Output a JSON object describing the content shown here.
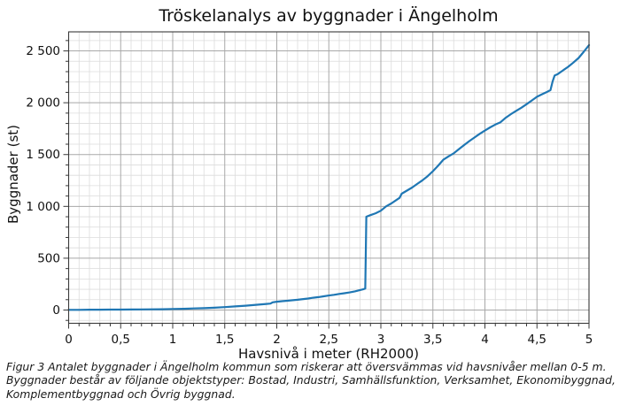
{
  "chart_data": {
    "type": "line",
    "title": "Tröskelanalys av byggnader i Ängelholm",
    "xlabel": "Havsnivå i meter (RH2000)",
    "ylabel": "Byggnader (st)",
    "xlim": [
      0,
      5
    ],
    "ylim": [
      -128,
      2684
    ],
    "grid": "major-and-minor",
    "legend": "none",
    "line_color": "#1f77b4",
    "major_grid_color": "#a8a8a8",
    "minor_grid_color": "#dcdcdc",
    "spine_color": "#3a3a3a",
    "x_minor_step": 0.1,
    "y_minor_step": 100,
    "x_ticks": [
      {
        "v": 0,
        "label": "0"
      },
      {
        "v": 0.5,
        "label": "0,5"
      },
      {
        "v": 1,
        "label": "1"
      },
      {
        "v": 1.5,
        "label": "1,5"
      },
      {
        "v": 2,
        "label": "2"
      },
      {
        "v": 2.5,
        "label": "2,5"
      },
      {
        "v": 3,
        "label": "3"
      },
      {
        "v": 3.5,
        "label": "3,5"
      },
      {
        "v": 4,
        "label": "4"
      },
      {
        "v": 4.5,
        "label": "4,5"
      },
      {
        "v": 5,
        "label": "5"
      }
    ],
    "y_ticks": [
      {
        "v": 0,
        "label": "0"
      },
      {
        "v": 500,
        "label": "500"
      },
      {
        "v": 1000,
        "label": "1 000"
      },
      {
        "v": 1500,
        "label": "1 500"
      },
      {
        "v": 2000,
        "label": "2 000"
      },
      {
        "v": 2500,
        "label": "2 500"
      }
    ],
    "series": [
      {
        "name": "Byggnader",
        "points": [
          [
            0,
            2
          ],
          [
            0.1,
            2
          ],
          [
            0.2,
            3
          ],
          [
            0.3,
            3
          ],
          [
            0.4,
            4
          ],
          [
            0.5,
            4
          ],
          [
            0.6,
            5
          ],
          [
            0.7,
            6
          ],
          [
            0.8,
            7
          ],
          [
            0.9,
            8
          ],
          [
            1.0,
            10
          ],
          [
            1.1,
            12
          ],
          [
            1.2,
            15
          ],
          [
            1.3,
            18
          ],
          [
            1.4,
            22
          ],
          [
            1.5,
            28
          ],
          [
            1.6,
            35
          ],
          [
            1.7,
            42
          ],
          [
            1.75,
            46
          ],
          [
            1.8,
            50
          ],
          [
            1.85,
            55
          ],
          [
            1.9,
            59
          ],
          [
            1.94,
            62
          ],
          [
            1.96,
            74
          ],
          [
            2.0,
            80
          ],
          [
            2.05,
            85
          ],
          [
            2.1,
            90
          ],
          [
            2.2,
            99
          ],
          [
            2.3,
            111
          ],
          [
            2.35,
            119
          ],
          [
            2.4,
            125
          ],
          [
            2.45,
            132
          ],
          [
            2.5,
            140
          ],
          [
            2.55,
            147
          ],
          [
            2.6,
            155
          ],
          [
            2.65,
            162
          ],
          [
            2.7,
            170
          ],
          [
            2.75,
            180
          ],
          [
            2.8,
            193
          ],
          [
            2.83,
            200
          ],
          [
            2.85,
            207
          ],
          [
            2.86,
            900
          ],
          [
            2.9,
            916
          ],
          [
            2.95,
            934
          ],
          [
            3.0,
            958
          ],
          [
            3.05,
            1000
          ],
          [
            3.1,
            1028
          ],
          [
            3.15,
            1062
          ],
          [
            3.18,
            1082
          ],
          [
            3.2,
            1122
          ],
          [
            3.25,
            1152
          ],
          [
            3.3,
            1182
          ],
          [
            3.35,
            1217
          ],
          [
            3.4,
            1252
          ],
          [
            3.45,
            1292
          ],
          [
            3.5,
            1340
          ],
          [
            3.55,
            1392
          ],
          [
            3.6,
            1450
          ],
          [
            3.65,
            1482
          ],
          [
            3.7,
            1512
          ],
          [
            3.75,
            1552
          ],
          [
            3.8,
            1592
          ],
          [
            3.85,
            1630
          ],
          [
            3.9,
            1665
          ],
          [
            3.95,
            1700
          ],
          [
            4.0,
            1732
          ],
          [
            4.05,
            1762
          ],
          [
            4.1,
            1790
          ],
          [
            4.15,
            1812
          ],
          [
            4.2,
            1855
          ],
          [
            4.25,
            1890
          ],
          [
            4.3,
            1922
          ],
          [
            4.35,
            1952
          ],
          [
            4.4,
            1986
          ],
          [
            4.45,
            2022
          ],
          [
            4.5,
            2058
          ],
          [
            4.55,
            2082
          ],
          [
            4.6,
            2106
          ],
          [
            4.63,
            2122
          ],
          [
            4.65,
            2205
          ],
          [
            4.67,
            2262
          ],
          [
            4.7,
            2277
          ],
          [
            4.75,
            2312
          ],
          [
            4.8,
            2347
          ],
          [
            4.85,
            2388
          ],
          [
            4.9,
            2432
          ],
          [
            4.95,
            2492
          ],
          [
            5.0,
            2556
          ]
        ]
      }
    ]
  },
  "caption": {
    "lines": [
      "Figur 3 Antalet byggnader i Ängelholm kommun som riskerar att översvämmas vid havsnivåer mellan 0-5 m.",
      "Byggnader består av följande objektstyper: Bostad, Industri, Samhällsfunktion, Verksamhet, Ekonomibyggnad,",
      "Komplementbyggnad och Övrig byggnad."
    ]
  }
}
